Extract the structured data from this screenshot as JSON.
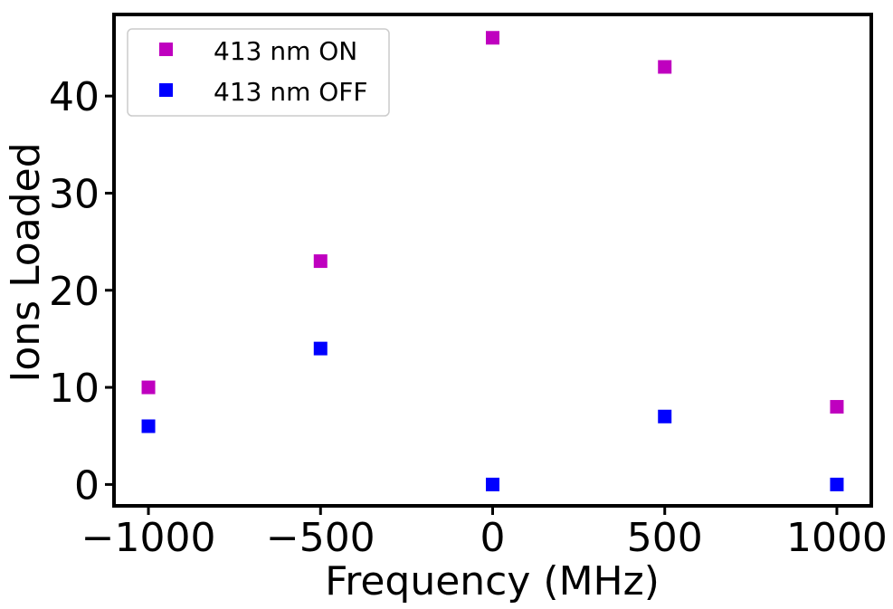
{
  "chart_data": {
    "type": "scatter",
    "xlabel": "Frequency (MHz)",
    "ylabel": "Ions Loaded",
    "xlim": [
      -1100,
      1100
    ],
    "ylim": [
      -2.2,
      48.4
    ],
    "xticks": [
      -1000,
      -500,
      0,
      500,
      1000
    ],
    "xtick_labels": [
      "−1000",
      "−500",
      "0",
      "500",
      "1000"
    ],
    "yticks": [
      0,
      10,
      20,
      30,
      40
    ],
    "ytick_labels": [
      "0",
      "10",
      "20",
      "30",
      "40"
    ],
    "grid": false,
    "legend_position": "top-left",
    "series": [
      {
        "name": "413 nm ON",
        "color": "#bf00bf",
        "marker": "square",
        "x": [
          -1000,
          -500,
          0,
          500,
          1000
        ],
        "y": [
          10,
          23,
          46,
          43,
          8
        ]
      },
      {
        "name": "413 nm OFF",
        "color": "#0000ff",
        "marker": "square",
        "x": [
          -1000,
          -500,
          0,
          500,
          1000
        ],
        "y": [
          6,
          14,
          0,
          7,
          0
        ]
      }
    ]
  }
}
